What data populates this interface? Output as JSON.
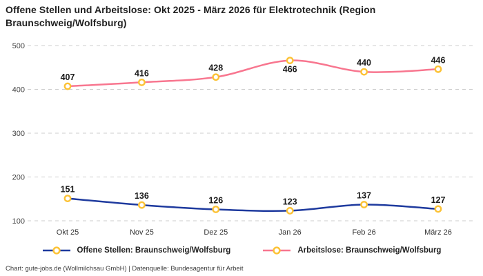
{
  "title": "Offene Stellen und Arbeitslose: Okt 2025 - März 2026 für Elektrotechnik (Region Braunschweig/Wolfsburg)",
  "footer": "Chart: gute-jobs.de (Wollmilchsau GmbH) | Datenquelle: Bundesagentur für Arbeit",
  "colors": {
    "offene_stellen": "#1e3a9e",
    "arbeitslose": "#f8768f",
    "marker": "#fcc235",
    "marker_fill": "#ffffff",
    "grid": "#cccccc",
    "data_label": "#1a1a1a",
    "axis_text": "#444444"
  },
  "chart_data": {
    "type": "line",
    "title": "Offene Stellen und Arbeitslose: Okt 2025 - März 2026 für Elektrotechnik (Region Braunschweig/Wolfsburg)",
    "categories": [
      "Okt 25",
      "Nov 25",
      "Dez 25",
      "Jan 26",
      "Feb 26",
      "März 26"
    ],
    "series": [
      {
        "name": "Offene Stellen: Braunschweig/Wolfsburg",
        "values": [
          151,
          136,
          126,
          123,
          137,
          127
        ],
        "color_key": "offene_stellen",
        "label_below_indices": []
      },
      {
        "name": "Arbeitslose: Braunschweig/Wolfsburg",
        "values": [
          407,
          416,
          428,
          466,
          440,
          446
        ],
        "color_key": "arbeitslose",
        "label_below_indices": [
          3
        ]
      }
    ],
    "ylim": [
      100,
      500
    ],
    "yticks": [
      100,
      200,
      300,
      400,
      500
    ],
    "grid": "horizontal-dashed",
    "legend_position": "bottom",
    "marker_style": "open-circle-yellow",
    "xlabel": "",
    "ylabel": ""
  },
  "legend": {
    "items": [
      {
        "label": "Offene Stellen: Braunschweig/Wolfsburg",
        "color_key": "offene_stellen"
      },
      {
        "label": "Arbeitslose: Braunschweig/Wolfsburg",
        "color_key": "arbeitslose"
      }
    ]
  }
}
